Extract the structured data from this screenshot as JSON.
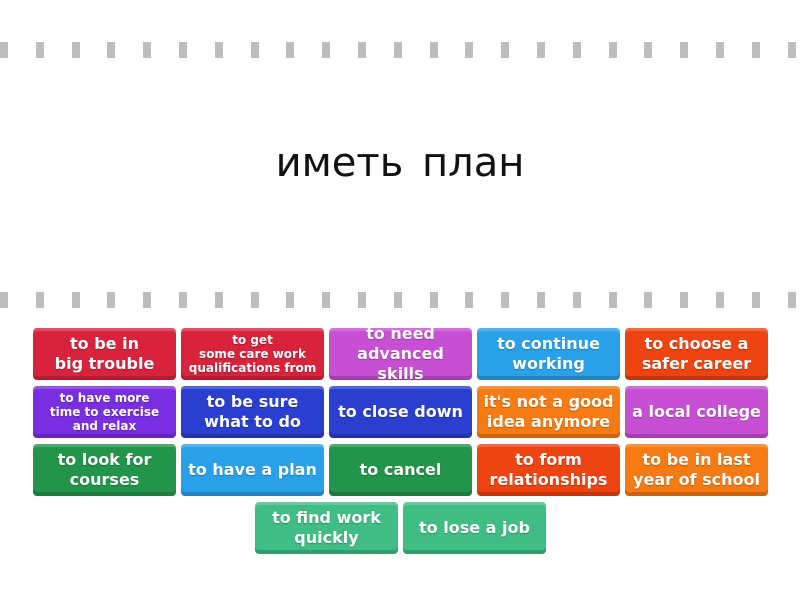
{
  "prompt": "иметь план",
  "tiles": [
    {
      "label": "to be in\nbig trouble",
      "color": "#d9233d",
      "size": "normal"
    },
    {
      "label": "to get\nsome care work\nqualifications from",
      "color": "#d9233d",
      "size": "small"
    },
    {
      "label": "to need\nadvanced skills",
      "color": "#c64fd4",
      "size": "normal"
    },
    {
      "label": "to continue\nworking",
      "color": "#2aa0e8",
      "size": "normal"
    },
    {
      "label": "to choose a\nsafer career",
      "color": "#ee4412",
      "size": "normal"
    },
    {
      "label": "to have more\ntime to exercise\nand relax",
      "color": "#7a2ee2",
      "size": "small"
    },
    {
      "label": "to be sure\nwhat to do",
      "color": "#2a3fd0",
      "size": "normal"
    },
    {
      "label": "to close down",
      "color": "#2a3fd0",
      "size": "normal"
    },
    {
      "label": "it's not a good\nidea anymore",
      "color": "#f67b14",
      "size": "normal"
    },
    {
      "label": "a local college",
      "color": "#c64fd4",
      "size": "normal"
    },
    {
      "label": "to look for\ncourses",
      "color": "#22954a",
      "size": "normal"
    },
    {
      "label": "to have a plan",
      "color": "#2aa0e8",
      "size": "normal"
    },
    {
      "label": "to cancel",
      "color": "#22954a",
      "size": "normal"
    },
    {
      "label": "to form\nrelationships",
      "color": "#ee4412",
      "size": "normal"
    },
    {
      "label": "to be in last\nyear of school",
      "color": "#f67b14",
      "size": "normal"
    },
    {
      "label": "to find work\nquickly",
      "color": "#40bd85",
      "size": "normal"
    },
    {
      "label": "to lose a job",
      "color": "#40bd85",
      "size": "normal"
    }
  ]
}
